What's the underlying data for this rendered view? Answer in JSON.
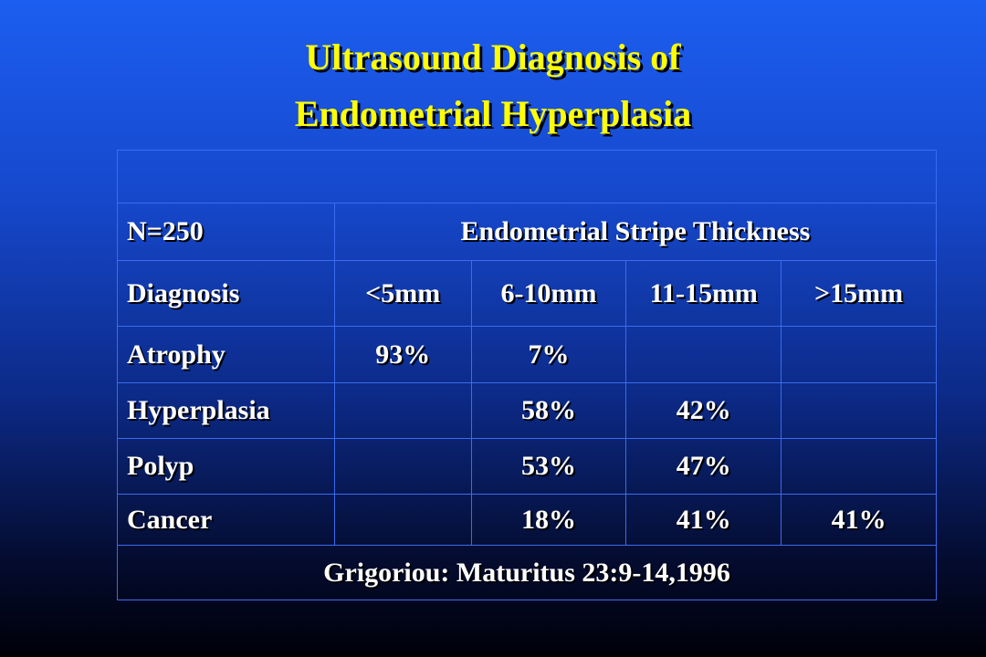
{
  "header": {
    "title_lines": [
      "Ultrasound Diagnosis of",
      "Endometrial Hyperplasia"
    ]
  },
  "table": {
    "sample": "N=250",
    "group_header": "Endometrial Stripe Thickness",
    "columns": [
      "Diagnosis",
      "<5mm",
      "6-10mm",
      "11-15mm",
      ">15mm"
    ],
    "rows": [
      {
        "label": "Atrophy",
        "cells": [
          "93%",
          "7%",
          null,
          null
        ]
      },
      {
        "label": "Hyperplasia",
        "cells": [
          null,
          "58%",
          "42%",
          null
        ]
      },
      {
        "label": "Polyp",
        "cells": [
          null,
          "53%",
          "47%",
          null
        ]
      },
      {
        "label": "Cancer",
        "cells": [
          null,
          "18%",
          "41%",
          "41%"
        ]
      }
    ],
    "footer": "Grigoriou: Maturitus 23:9-14,1996"
  }
}
